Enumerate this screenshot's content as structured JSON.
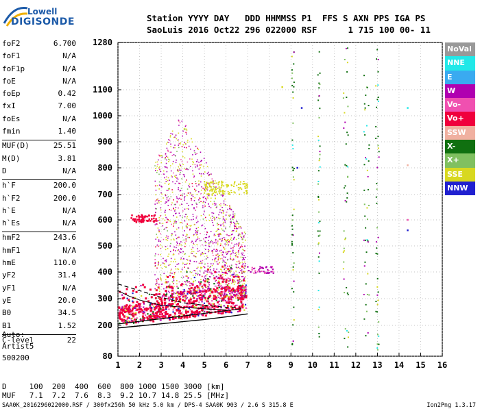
{
  "logo": {
    "line1": "Lowell",
    "line2": "DIGISONDE"
  },
  "header": {
    "row1": "Station YYYY DAY   DDD HHMMSS P1  FFS S AXN PPS IGA PS",
    "row2": "SaoLuis 2016 Oct22 296 022000 RSF      1 715 100 00- 11"
  },
  "params": [
    {
      "name": "foF2",
      "value": "6.700"
    },
    {
      "name": "foF1",
      "value": "N/A"
    },
    {
      "name": "foF1p",
      "value": "N/A"
    },
    {
      "name": "foE",
      "value": "N/A"
    },
    {
      "name": "foEp",
      "value": "0.42"
    },
    {
      "name": "fxI",
      "value": "7.00"
    },
    {
      "name": "foEs",
      "value": "N/A"
    },
    {
      "name": "fmin",
      "value": "1.40"
    },
    {
      "name": "MUF(D)",
      "value": "25.51"
    },
    {
      "name": "M(D)",
      "value": "3.81"
    },
    {
      "name": "D",
      "value": "N/A"
    },
    {
      "name": "h`F",
      "value": "200.0"
    },
    {
      "name": "h`F2",
      "value": "200.0"
    },
    {
      "name": "h`E",
      "value": "N/A"
    },
    {
      "name": "h`Es",
      "value": "N/A"
    },
    {
      "name": "hmF2",
      "value": "243.6"
    },
    {
      "name": "hmF1",
      "value": "N/A"
    },
    {
      "name": "hmE",
      "value": "110.0"
    },
    {
      "name": "yF2",
      "value": "31.4"
    },
    {
      "name": "yF1",
      "value": "N/A"
    },
    {
      "name": "yE",
      "value": "20.0"
    },
    {
      "name": "B0",
      "value": "34.5"
    },
    {
      "name": "B1",
      "value": "1.52"
    },
    {
      "name": "C-level",
      "value": "22"
    }
  ],
  "auto": {
    "line1": "Auto:",
    "line2": "Artist5",
    "line3": "500200"
  },
  "legend": [
    {
      "label": "NoVal",
      "color": "#999999"
    },
    {
      "label": "NNE",
      "color": "#22e8e8"
    },
    {
      "label": "E",
      "color": "#3aaaf0"
    },
    {
      "label": "W",
      "color": "#b000b0"
    },
    {
      "label": "Vo-",
      "color": "#f050b0"
    },
    {
      "label": "Vo+",
      "color": "#f0003c"
    },
    {
      "label": "SSW",
      "color": "#f0b0a0"
    },
    {
      "label": "X-",
      "color": "#107010"
    },
    {
      "label": "X+",
      "color": "#80c060"
    },
    {
      "label": "SSE",
      "color": "#d8d820"
    },
    {
      "label": "NNW",
      "color": "#2020d0"
    }
  ],
  "dmuf": {
    "row1": "D     100  200  400  600  800 1000 1500 3000 [km]",
    "row2": "MUF   7.1  7.2  7.6  8.3  9.2 10.7 14.8 25.5 [MHz]"
  },
  "footer": "SAA0K_2016296022000.RSF / 300fx256h 50 kHz 5.0 km / DPS-4 SAA0K 903 / 2.6 S 315.8 E",
  "version": "Ion2Png 1.3.17",
  "chart_data": {
    "type": "scatter",
    "xlim": [
      1,
      16
    ],
    "ylim": [
      80,
      1280
    ],
    "x_ticks": [
      "1",
      "2",
      "3",
      "4",
      "5",
      "6",
      "7",
      "8",
      "9",
      "10",
      "11",
      "12",
      "13",
      "14",
      "15",
      "16"
    ],
    "y_ticks": [
      "80",
      "200",
      "300",
      "400",
      "500",
      "600",
      "700",
      "800",
      "900",
      "1000",
      "1100",
      "1280"
    ],
    "y_scale": "quasi-log (virtual height, km)",
    "grid": true,
    "legend_position": "right",
    "trace_profile": {
      "x": [
        1.0,
        2.0,
        3.0,
        4.0,
        5.0,
        6.0,
        6.7
      ],
      "y": [
        205,
        215,
        225,
        235,
        245,
        255,
        262
      ]
    },
    "trace_lower": {
      "x": [
        1.0,
        2.0,
        3.0,
        4.0,
        5.0,
        6.0,
        7.0
      ],
      "y": [
        190,
        198,
        206,
        214,
        222,
        232,
        243
      ]
    },
    "trace_dashed": {
      "x": [
        1.0,
        2.0,
        3.0,
        4.0,
        5.0,
        6.0,
        6.7
      ],
      "y": [
        355,
        330,
        305,
        285,
        275,
        268,
        265
      ]
    },
    "trace_solid_upper": {
      "x": [
        1.0,
        1.5,
        2.0,
        2.5,
        3.0,
        4.0,
        5.0,
        6.0
      ],
      "y": [
        330,
        310,
        295,
        285,
        275,
        268,
        262,
        258
      ]
    }
  }
}
